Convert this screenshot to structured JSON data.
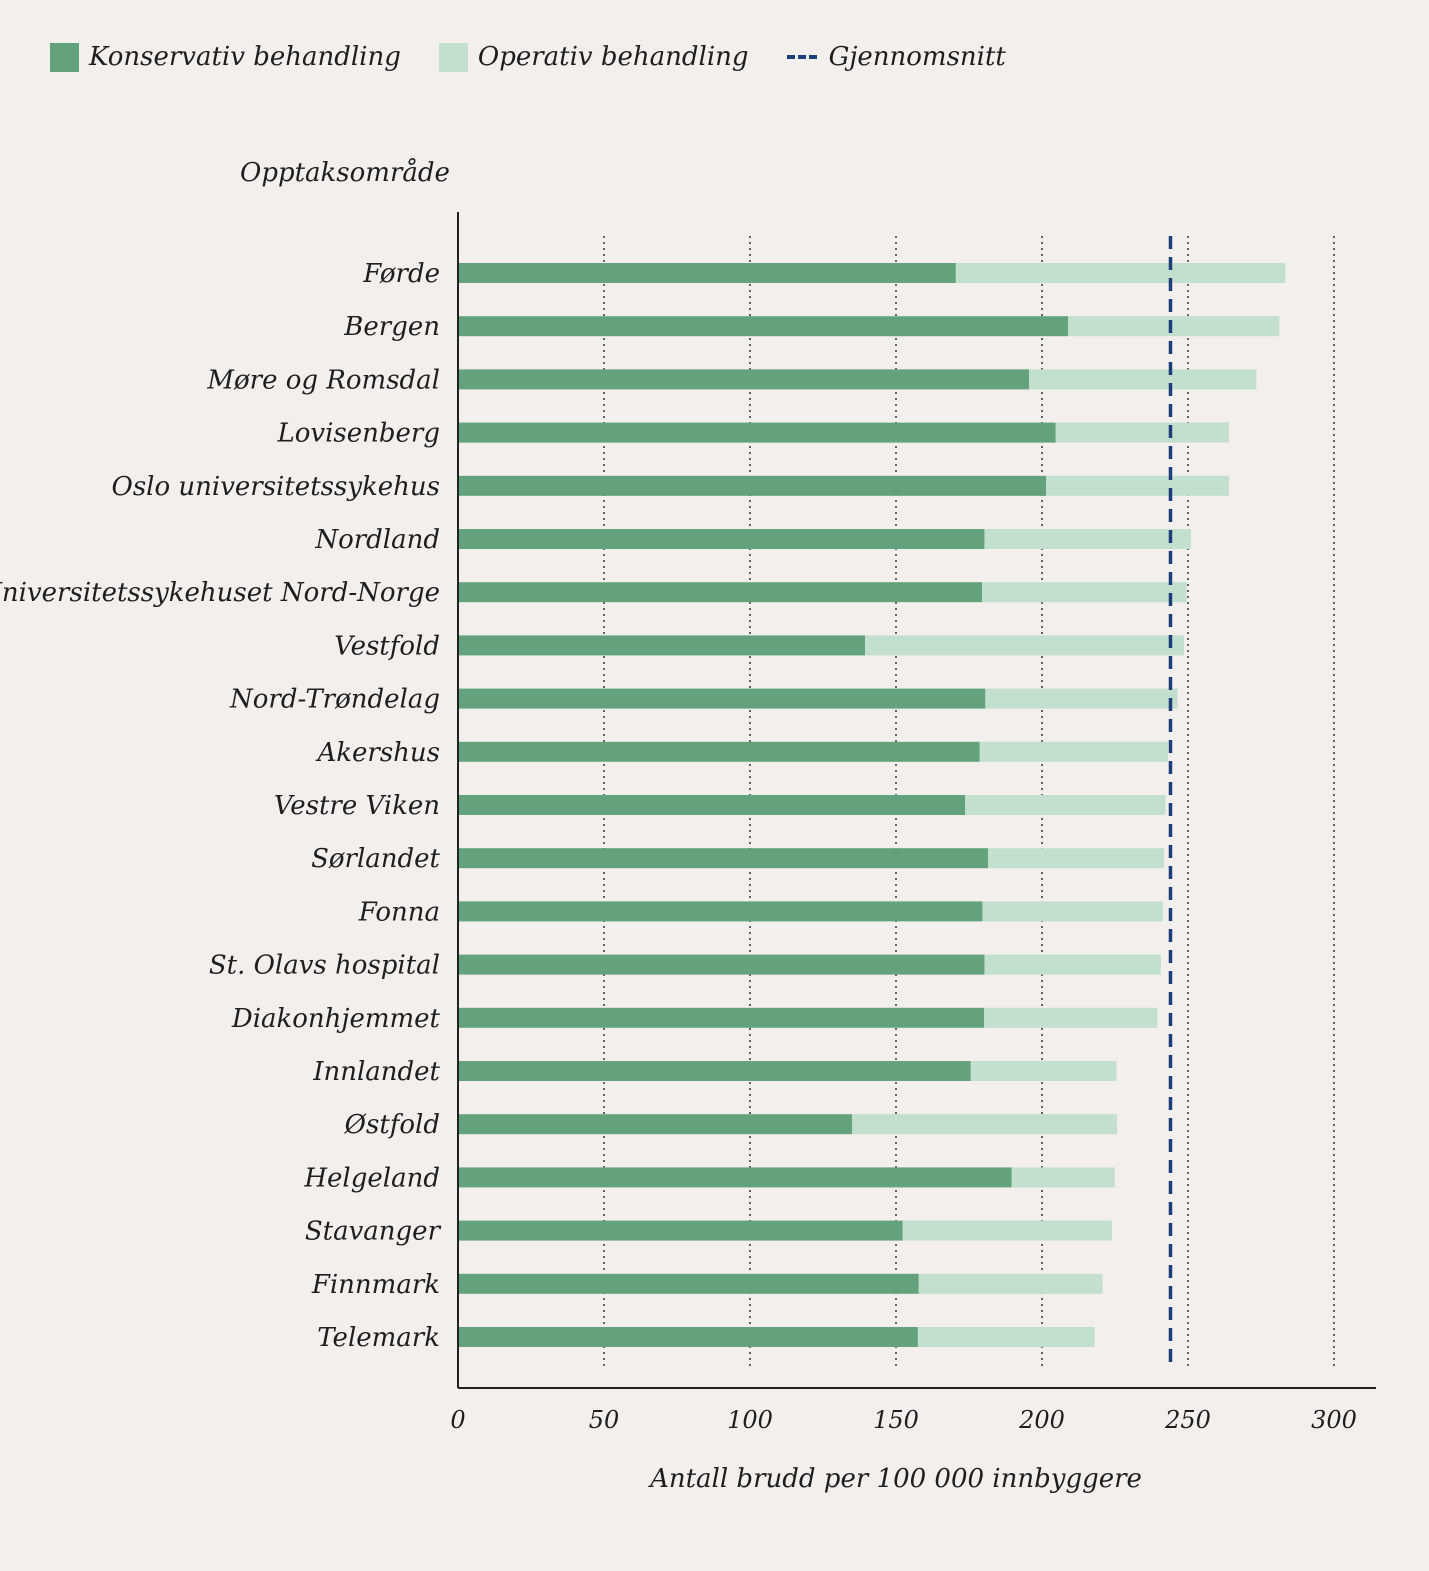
{
  "legend": {
    "conservative": "Konservativ behandling",
    "operative": "Operativ behandling",
    "average": "Gjennomsnitt"
  },
  "colors": {
    "conservative": "#64a27d",
    "operative": "#c3dfcd",
    "average": "#1c3f7a",
    "background": "#f2efed"
  },
  "chart_data": {
    "type": "bar",
    "orientation": "horizontal",
    "stacked": true,
    "ylabel": "Opptaksområde",
    "xlabel": "Antall brudd per 100 000 innbyggere",
    "xlim": [
      0,
      300
    ],
    "xticks": [
      0,
      50,
      100,
      150,
      200,
      250,
      300
    ],
    "grid": "vertical dotted",
    "legend_position": "top-left",
    "categories": [
      "Førde",
      "Bergen",
      "Møre og Romsdal",
      "Lovisenberg",
      "Oslo universitetssykehus",
      "Nordland",
      "Universitetssykehuset Nord-Norge",
      "Vestfold",
      "Nord-Trøndelag",
      "Akershus",
      "Vestre Viken",
      "Sørlandet",
      "Fonna",
      "St. Olavs hospital",
      "Diakonhjemmet",
      "Innlandet",
      "Østfold",
      "Helgeland",
      "Stavanger",
      "Finnmark",
      "Telemark"
    ],
    "series": [
      {
        "name": "Konservativ behandling",
        "values": [
          170.5,
          208.9,
          195.6,
          204.7,
          201.4,
          180.3,
          179.5,
          139.4,
          180.6,
          178.6,
          173.7,
          181.5,
          179.6,
          180.3,
          180.2,
          175.6,
          135.0,
          189.6,
          152.3,
          157.8,
          157.5
        ]
      },
      {
        "name": "Operativ behandling",
        "values": [
          112.8,
          72.4,
          77.8,
          59.3,
          62.6,
          70.7,
          70.0,
          109.2,
          65.8,
          64.5,
          68.6,
          60.3,
          61.8,
          60.4,
          59.3,
          49.9,
          90.7,
          35.3,
          71.6,
          62.9,
          60.5
        ]
      }
    ],
    "average": 244
  }
}
